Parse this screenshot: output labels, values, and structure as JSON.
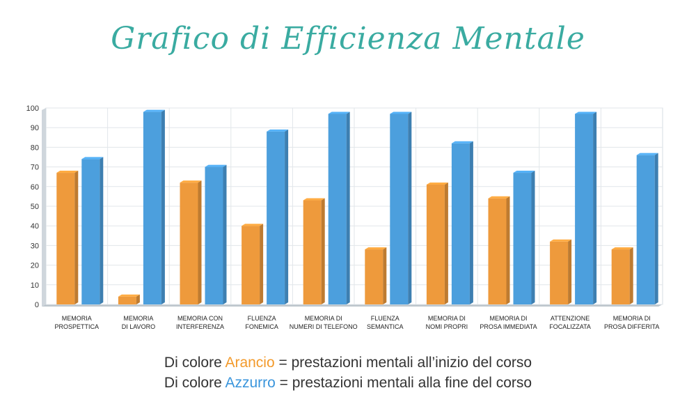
{
  "title": "Grafico di Efficienza Mentale",
  "legend": [
    {
      "prefix": "Di colore ",
      "color_word": "Arancio",
      "suffix": " = prestazioni mentali all’inizio del corso"
    },
    {
      "prefix": "Di colore ",
      "color_word": "Azzurro",
      "suffix": " = prestazioni mentali alla fine del corso"
    }
  ],
  "colors": {
    "orange": "#ee9a3c",
    "blue": "#4c9fdd",
    "title": "#3aaba1"
  },
  "chart_data": {
    "type": "bar",
    "title": "Grafico di Efficienza Mentale",
    "xlabel": "",
    "ylabel": "",
    "ylim": [
      0,
      100
    ],
    "yticks": [
      "0",
      "10",
      "20",
      "30",
      "40",
      "50",
      "60",
      "70",
      "80",
      "90",
      "100"
    ],
    "grid": true,
    "categories": [
      [
        "MEMORIA",
        "PROSPETTICA"
      ],
      [
        "MEMORIA",
        "DI LAVORO"
      ],
      [
        "MEMORIA CON",
        "INTERFERENZA"
      ],
      [
        "FLUENZA",
        "FONEMICA"
      ],
      [
        "MEMORIA DI",
        "NUMERI DI TELEFONO"
      ],
      [
        "FLUENZA",
        "SEMANTICA"
      ],
      [
        "MEMORIA DI",
        "NOMI PROPRI"
      ],
      [
        "MEMORIA DI",
        "PROSA IMMEDIATA"
      ],
      [
        "ATTENZIONE",
        "FOCALIZZATA"
      ],
      [
        "MEMORIA DI",
        "PROSA DIFFERITA"
      ]
    ],
    "series": [
      {
        "color": "#ee9a3c",
        "values": [
          67,
          4,
          62,
          40,
          53,
          28,
          61,
          54,
          32,
          28
        ]
      },
      {
        "color": "#4c9fdd",
        "values": [
          74,
          98,
          70,
          88,
          97,
          97,
          82,
          67,
          97,
          76
        ]
      }
    ]
  }
}
